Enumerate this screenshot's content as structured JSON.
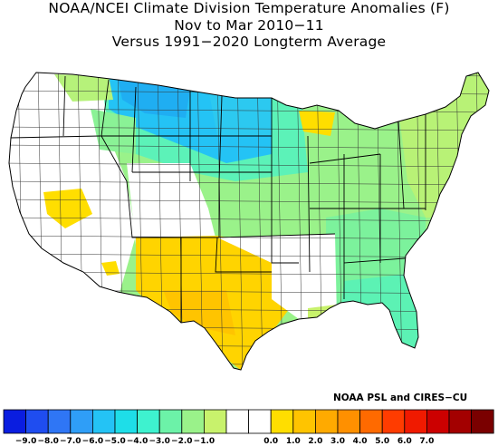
{
  "title": {
    "line1": "NOAA/NCEI Climate Division Temperature Anomalies (F)",
    "line2": "Nov to Mar 2010−11",
    "line3": "Versus 1991−2020 Longterm Average"
  },
  "credit": "NOAA PSL and CIRES−CU",
  "legend": {
    "colors": [
      "#0a1de0",
      "#1f4df0",
      "#2f76f5",
      "#2f9ef7",
      "#24c3f5",
      "#1edee8",
      "#3ef2cf",
      "#6cf2a8",
      "#9af28a",
      "#c8f26c",
      "#ffffff",
      "#ffffff",
      "#ffde00",
      "#ffc400",
      "#ffaa00",
      "#ff9000",
      "#ff6a00",
      "#ff3c00",
      "#f01a00",
      "#cc0000",
      "#a30000",
      "#7a0000"
    ],
    "labels": [
      "−9.0",
      "−8.0",
      "−7.0",
      "−6.0",
      "−5.0",
      "−4.0",
      "−3.0",
      "−2.0",
      "−1.0",
      "0.0",
      "1.0",
      "2.0",
      "3.0",
      "4.0",
      "5.0",
      "6.0",
      "7.0"
    ]
  },
  "map": {
    "regions": [
      {
        "name": "upper-plains",
        "anomaly": -5.0,
        "color": "#24c3f5"
      },
      {
        "name": "north-rockies-plains",
        "anomaly": -3.0,
        "color": "#6cf2a8"
      },
      {
        "name": "central-east",
        "anomaly": -2.0,
        "color": "#9af28a"
      },
      {
        "name": "southwest-texas",
        "anomaly": 0.5,
        "color": "#ffde00"
      }
    ]
  }
}
